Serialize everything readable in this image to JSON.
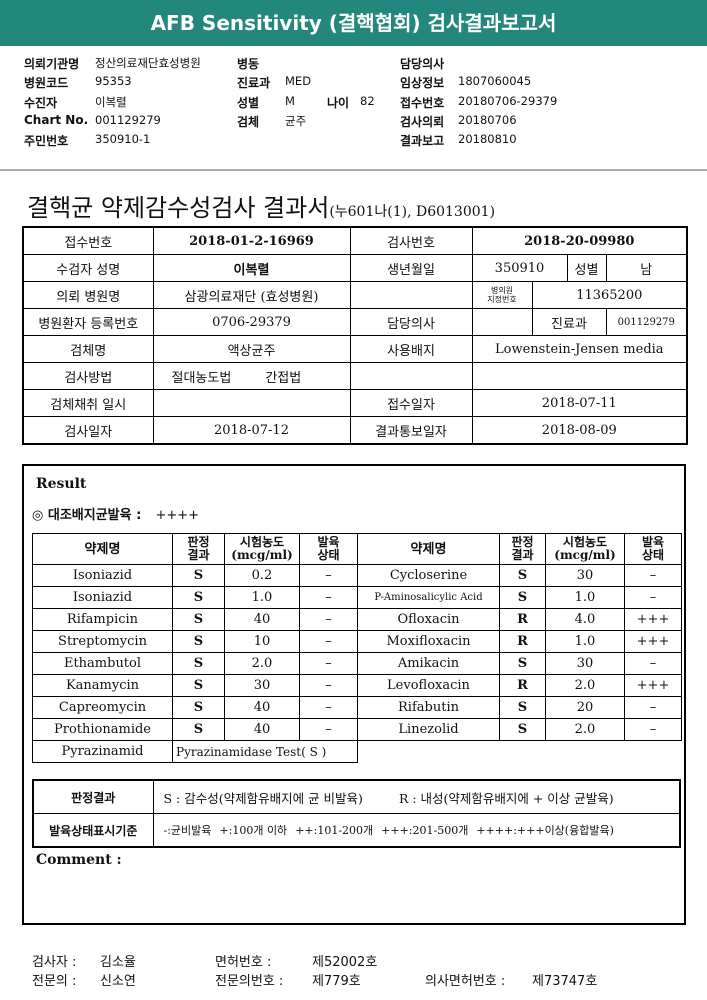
{
  "header": {
    "title": "AFB Sensitivity (결핵협회) 검사결과보고서"
  },
  "info": {
    "rows": [
      [
        {
          "label": "의뢰기관명",
          "value": "정산의료재단효성병원"
        },
        {
          "label": "병동"
        },
        {
          "label": "담당의사"
        }
      ],
      [
        {
          "label": "병원코드",
          "value": "95353"
        },
        {
          "label": "진료과",
          "value": "MED"
        },
        {
          "label": "임상정보",
          "value": "1807060045"
        }
      ],
      [
        {
          "label": "수진자",
          "value": "이복렬"
        },
        {
          "label": "성별",
          "value": "M",
          "extra_label": "나이",
          "extra_value": "82"
        },
        {
          "label": "접수번호",
          "value": "20180706-29379"
        }
      ],
      [
        {
          "label": "Chart No.",
          "value": "001129279"
        },
        {
          "label": "검체",
          "value": "균주"
        },
        {
          "label": "검사의뢰",
          "value": "20180706"
        }
      ],
      [
        {
          "label": "주민번호",
          "value": "350910-1"
        },
        null,
        {
          "label": "결과보고",
          "value": "20180810"
        }
      ]
    ]
  },
  "report": {
    "title": "결핵균 약제감수성검사 결과서",
    "code": "(누601나(1), D6013001)"
  },
  "patient_table": {
    "rows": [
      [
        "접수번호",
        "2018-01-2-16969",
        "검사번호",
        "2018-20-09980"
      ],
      [
        "수검자 성명",
        "이복렬",
        "생년월일",
        "350910",
        "성별",
        "남"
      ],
      [
        "의뢰 병원명",
        "삼광의료재단 (효성병원)",
        "병의원\n지정번호",
        "11365200"
      ],
      [
        "병원환자 등록번호",
        "0706-29379",
        "담당의사",
        "진료과",
        "001129279"
      ],
      [
        "검체명",
        "액상균주",
        "사용배지",
        "Lowenstein-Jensen media"
      ],
      [
        "검사방법",
        "절대농도법",
        "간접법"
      ],
      [
        "검체채취 일시",
        "접수일자",
        "2018-07-11"
      ],
      [
        "검사일자",
        "2018-07-12",
        "결과통보일자",
        "2018-08-09"
      ]
    ]
  },
  "result": {
    "heading": "Result",
    "control_label": "◎ 대조배지균발육 :",
    "control_value": "++++",
    "columns": [
      "약제명",
      "판정\n결과",
      "시험농도\n(mcg/ml)",
      "발육\n상태"
    ],
    "rows": [
      [
        "Isoniazid",
        "S",
        "0.2",
        "–",
        "Cycloserine",
        "S",
        "30",
        "–"
      ],
      [
        "Isoniazid",
        "S",
        "1.0",
        "–",
        "P-Aminosalicylic Acid",
        "S",
        "1.0",
        "–"
      ],
      [
        "Rifampicin",
        "S",
        "40",
        "–",
        "Ofloxacin",
        "R",
        "4.0",
        "+++"
      ],
      [
        "Streptomycin",
        "S",
        "10",
        "–",
        "Moxifloxacin",
        "R",
        "1.0",
        "+++"
      ],
      [
        "Ethambutol",
        "S",
        "2.0",
        "–",
        "Amikacin",
        "S",
        "30",
        "–"
      ],
      [
        "Kanamycin",
        "S",
        "30",
        "–",
        "Levofloxacin",
        "R",
        "2.0",
        "+++"
      ],
      [
        "Capreomycin",
        "S",
        "40",
        "–",
        "Rifabutin",
        "S",
        "20",
        "–"
      ],
      [
        "Prothionamide",
        "S",
        "40",
        "–",
        "Linezolid",
        "S",
        "2.0",
        "–"
      ]
    ],
    "pyrazinamide": {
      "name": "Pyrazinamid",
      "test": "Pyrazinamidase Test( S )"
    }
  },
  "legend": {
    "rows": [
      {
        "label": "판정결과",
        "items": [
          "S : 감수성(약제함유배지에 균 비발육)",
          "R : 내성(약제함유배지에 + 이상 균발육)"
        ]
      },
      {
        "label": "발육상태표시기준",
        "items": [
          "-:균비발육",
          "+:100개 이하",
          "++:101-200개",
          "+++:201-500개",
          "++++:+++이상(융합발육)"
        ]
      }
    ]
  },
  "comment": {
    "label": "Comment :"
  },
  "footer": {
    "rows": [
      [
        {
          "label": "검사자 :",
          "value": "김소율"
        },
        {
          "label": "면허번호 :",
          "value": "제52002호"
        }
      ],
      [
        {
          "label": "전문의 :",
          "value": "신소연"
        },
        {
          "label": "전문의번호 :",
          "value": "제779호"
        },
        {
          "label": "의사면허번호 :",
          "value": "제73747호"
        }
      ]
    ]
  }
}
